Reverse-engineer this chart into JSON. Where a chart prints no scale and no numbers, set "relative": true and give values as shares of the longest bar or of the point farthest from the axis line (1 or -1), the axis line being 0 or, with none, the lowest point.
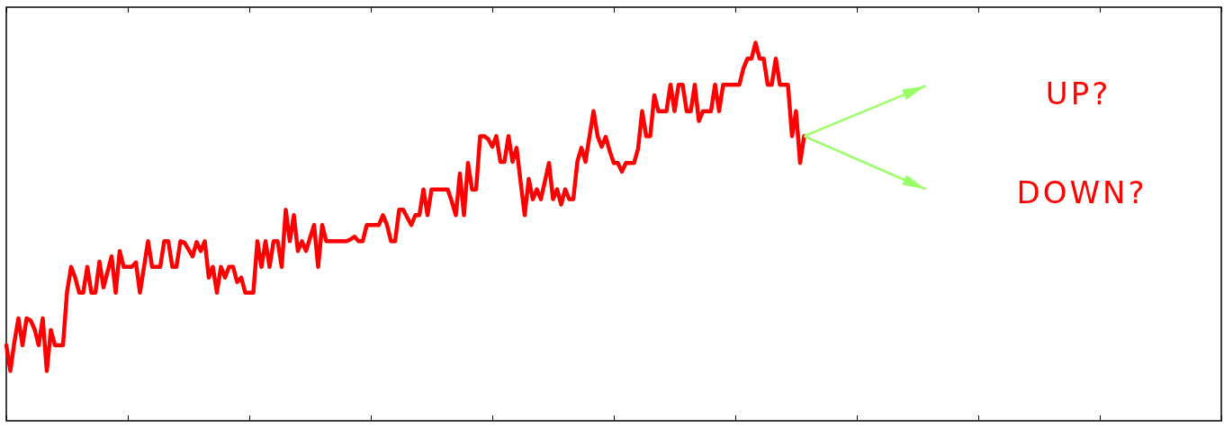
{
  "chart_data": {
    "type": "line",
    "relative": true,
    "marker": "none",
    "line_style": "solid",
    "grid": false,
    "categories": [
      null,
      null,
      null,
      null,
      null,
      null,
      null,
      null,
      null,
      null,
      null,
      null,
      null,
      null,
      null,
      null,
      null,
      null,
      null,
      null,
      null,
      null,
      null,
      null,
      null,
      null,
      null,
      null,
      null,
      null,
      null,
      null,
      null,
      null,
      null,
      null,
      null,
      null,
      null,
      null,
      null,
      null,
      null,
      null,
      null,
      null,
      null,
      null,
      null,
      null,
      null,
      null,
      null,
      null,
      null,
      null,
      null,
      null,
      null,
      null,
      null,
      null,
      null,
      null,
      null,
      null,
      null,
      null,
      null,
      null,
      null,
      null,
      null,
      null,
      null,
      null,
      null,
      null,
      null,
      null,
      null,
      null,
      null,
      null,
      null,
      null,
      null,
      null,
      null,
      null,
      null,
      null,
      null,
      null,
      null,
      null,
      null,
      null,
      null,
      null,
      null,
      null,
      null,
      null,
      null,
      null,
      null,
      null,
      null,
      null,
      null,
      null,
      null,
      null,
      null,
      null,
      null,
      null,
      null,
      null,
      null,
      null,
      null,
      null,
      null,
      null,
      null,
      null,
      null,
      null,
      null,
      null,
      null,
      null,
      null,
      null,
      null,
      null,
      null,
      null,
      null,
      null,
      null,
      null,
      null,
      null,
      null,
      null,
      null,
      null,
      null,
      null,
      null,
      null,
      null,
      null,
      null,
      null,
      null,
      null,
      null,
      null,
      null,
      null,
      null,
      null,
      null,
      null,
      null,
      null,
      null,
      null,
      null,
      null,
      null,
      null,
      null,
      null,
      null,
      null,
      null,
      null,
      null,
      null,
      null,
      null,
      null,
      null,
      null,
      null,
      null,
      null,
      null,
      null,
      null,
      null,
      null,
      null,
      null,
      null,
      null,
      null,
      null,
      null,
      null,
      null,
      null,
      null,
      null,
      null,
      null,
      null,
      null,
      null,
      null,
      null,
      null,
      null,
      null,
      null,
      null,
      null,
      null,
      null,
      null,
      null,
      null,
      null,
      null,
      null,
      null,
      null,
      null,
      null,
      null,
      null,
      null,
      null,
      null,
      null,
      null,
      null,
      null,
      null,
      null,
      null,
      null,
      null,
      null,
      null,
      null,
      null,
      null,
      null,
      null,
      null,
      null,
      null,
      null,
      null,
      null,
      null,
      null,
      null,
      null,
      null,
      null,
      null,
      null,
      null,
      null,
      null,
      null,
      null,
      null,
      null,
      null,
      null,
      null,
      null,
      null,
      null,
      null,
      null,
      null,
      null,
      null,
      null,
      null,
      null,
      null,
      null,
      null,
      null,
      null,
      null,
      null,
      null,
      null,
      null,
      null
    ],
    "annotations": [
      "UP?",
      "DOWN?"
    ],
    "series": [
      {
        "color": "#ff0000",
        "values": [
          0.2,
          0.132,
          0.209,
          0.271,
          0.2,
          0.271,
          0.265,
          0.242,
          0.2,
          0.271,
          0.132,
          0.24,
          0.2,
          0.2,
          0.2,
          0.341,
          0.407,
          0.379,
          0.339,
          0.339,
          0.407,
          0.339,
          0.339,
          0.421,
          0.353,
          0.394,
          0.435,
          0.339,
          0.449,
          0.407,
          0.407,
          0.407,
          0.419,
          0.339,
          0.407,
          0.475,
          0.407,
          0.407,
          0.407,
          0.475,
          0.475,
          0.407,
          0.407,
          0.475,
          0.471,
          0.453,
          0.435,
          0.473,
          0.449,
          0.475,
          0.379,
          0.407,
          0.339,
          0.407,
          0.379,
          0.407,
          0.407,
          0.367,
          0.379,
          0.339,
          0.339,
          0.339,
          0.475,
          0.407,
          0.475,
          0.407,
          0.475,
          0.475,
          0.407,
          0.558,
          0.475,
          0.544,
          0.449,
          0.475,
          0.449,
          0.484,
          0.518,
          0.407,
          0.518,
          0.475,
          0.475,
          0.475,
          0.475,
          0.475,
          0.475,
          0.48,
          0.487,
          0.475,
          0.475,
          0.518,
          0.518,
          0.518,
          0.518,
          0.544,
          0.518,
          0.475,
          0.475,
          0.558,
          0.558,
          0.538,
          0.518,
          0.544,
          0.544,
          0.612,
          0.544,
          0.612,
          0.612,
          0.612,
          0.612,
          0.612,
          0.58,
          0.544,
          0.654,
          0.544,
          0.682,
          0.612,
          0.612,
          0.753,
          0.753,
          0.745,
          0.725,
          0.753,
          0.685,
          0.685,
          0.753,
          0.685,
          0.722,
          0.631,
          0.544,
          0.64,
          0.586,
          0.612,
          0.586,
          0.634,
          0.682,
          0.586,
          0.612,
          0.572,
          0.612,
          0.586,
          0.586,
          0.685,
          0.722,
          0.685,
          0.752,
          0.819,
          0.753,
          0.725,
          0.751,
          0.713,
          0.682,
          0.682,
          0.659,
          0.682,
          0.682,
          0.682,
          0.72,
          0.819,
          0.753,
          0.753,
          0.861,
          0.819,
          0.819,
          0.819,
          0.889,
          0.819,
          0.889,
          0.889,
          0.819,
          0.819,
          0.889,
          0.793,
          0.819,
          0.819,
          0.819,
          0.889,
          0.819,
          0.889,
          0.889,
          0.889,
          0.889,
          0.889,
          0.932,
          0.958,
          0.958,
          1,
          0.958,
          0.958,
          0.889,
          0.889,
          0.958,
          0.889,
          0.889,
          0.889,
          0.753,
          0.819,
          0.682,
          0.753,
          null,
          null,
          null,
          null,
          null,
          null,
          null,
          null,
          null,
          null,
          null,
          null,
          null,
          null,
          null,
          null,
          null,
          null,
          null,
          null,
          null,
          null,
          null,
          null,
          null,
          null,
          null,
          null,
          null,
          null,
          null,
          null,
          null,
          null,
          null,
          null,
          null,
          null,
          null,
          null,
          null,
          null,
          null,
          null,
          null,
          null,
          null,
          null,
          null,
          null,
          null,
          null,
          null,
          null,
          null,
          null,
          null,
          null,
          null,
          null,
          null,
          null,
          null,
          null,
          null,
          null,
          null,
          null,
          null,
          null,
          null,
          null,
          null,
          null,
          null,
          null,
          null,
          null,
          null,
          null,
          null,
          null,
          null,
          null,
          null,
          null,
          null,
          null,
          null,
          null,
          null,
          null,
          null,
          null,
          null,
          null,
          null,
          null,
          null,
          null,
          null,
          null,
          null
        ]
      }
    ]
  }
}
